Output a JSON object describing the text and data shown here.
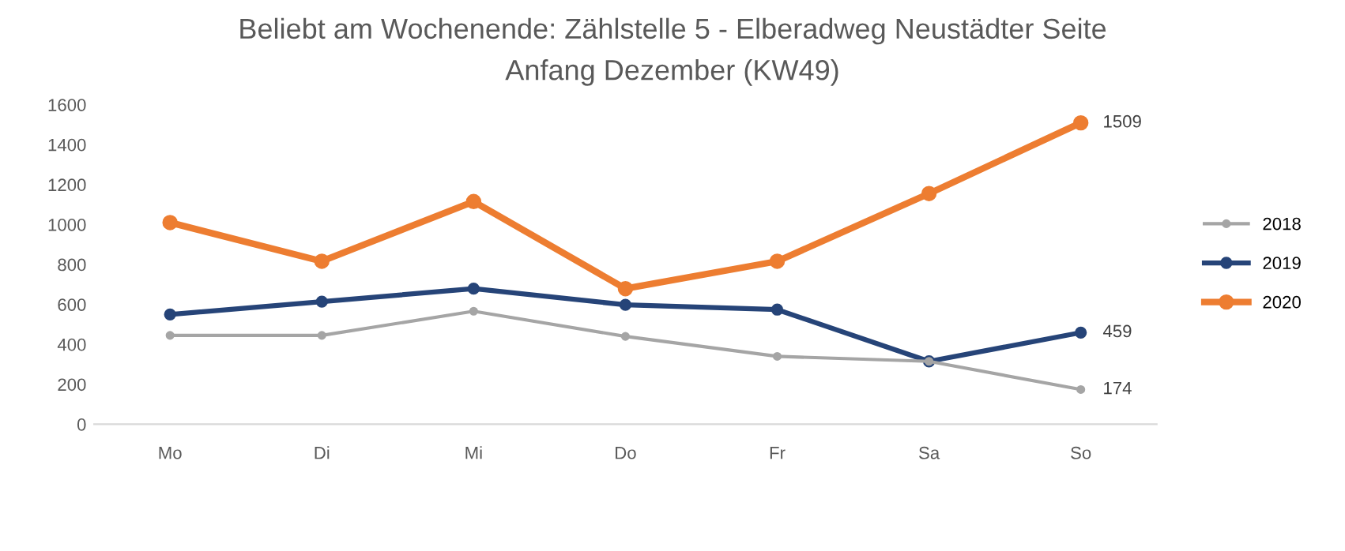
{
  "chart_data": {
    "type": "line",
    "title": "Beliebt am Wochenende: Zählstelle 5 - Elberadweg Neustädter Seite",
    "subtitle": "Anfang Dezember (KW49)",
    "categories": [
      "Mo",
      "Di",
      "Mi",
      "Do",
      "Fr",
      "Sa",
      "So"
    ],
    "series": [
      {
        "name": "2018",
        "color": "#a5a5a5",
        "values": [
          445,
          445,
          566,
          440,
          340,
          315,
          174
        ],
        "value_labels": [
          null,
          null,
          null,
          null,
          null,
          null,
          "174"
        ]
      },
      {
        "name": "2019",
        "color": "#264478",
        "values": [
          550,
          614,
          679,
          598,
          574,
          315,
          459
        ],
        "value_labels": [
          null,
          null,
          null,
          null,
          null,
          null,
          "459"
        ]
      },
      {
        "name": "2020",
        "color": "#ed7d31",
        "values": [
          1010,
          816,
          1115,
          679,
          816,
          1155,
          1509
        ],
        "value_labels": [
          null,
          null,
          null,
          null,
          null,
          null,
          "1509"
        ]
      }
    ],
    "ylim": [
      0,
      1600
    ],
    "yticks": [
      0,
      200,
      400,
      600,
      800,
      1000,
      1200,
      1400,
      1600
    ],
    "grid": false,
    "legend": "right",
    "marker": "circle",
    "line_style": "solid"
  }
}
